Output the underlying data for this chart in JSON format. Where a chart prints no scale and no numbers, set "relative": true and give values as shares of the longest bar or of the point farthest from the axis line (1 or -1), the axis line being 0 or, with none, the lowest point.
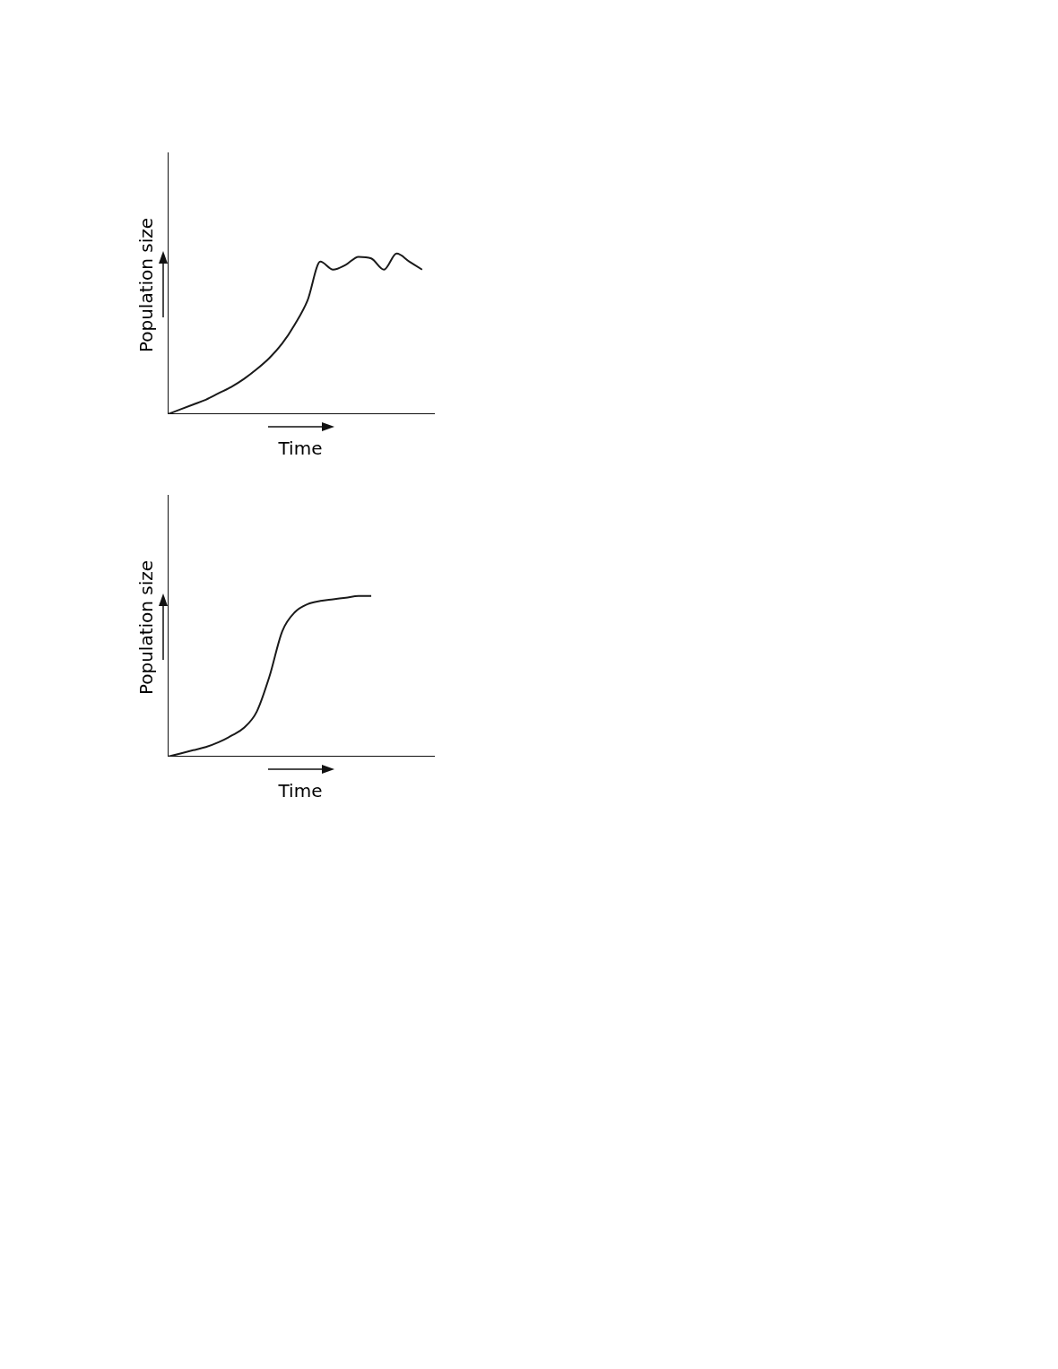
{
  "chart_data": [
    {
      "type": "line",
      "relative": true,
      "xlabel": "Time",
      "ylabel": "Population size",
      "color": "#1a1a1a",
      "marker": "none",
      "line_style": "solid",
      "categories": [
        null,
        null,
        null,
        null,
        null,
        null,
        null,
        null,
        null,
        null,
        null,
        null,
        null,
        null,
        null,
        null,
        null,
        null,
        null,
        null,
        null,
        null
      ],
      "values": [
        0,
        0.03,
        0.06,
        0.09,
        0.13,
        0.17,
        0.22,
        0.28,
        0.35,
        0.44,
        0.56,
        0.71,
        0.95,
        0.9,
        0.93,
        0.98,
        0.97,
        0.9,
        1.0,
        0.95,
        0.9,
        null
      ]
    },
    {
      "type": "line",
      "relative": true,
      "xlabel": "Time",
      "ylabel": "Population size",
      "color": "#1a1a1a",
      "marker": "none",
      "line_style": "solid",
      "categories": [
        null,
        null,
        null,
        null,
        null,
        null,
        null,
        null,
        null,
        null,
        null,
        null,
        null,
        null,
        null,
        null,
        null,
        null,
        null,
        null,
        null,
        null
      ],
      "values": [
        0,
        0.02,
        0.04,
        0.06,
        0.09,
        0.13,
        0.18,
        0.28,
        0.5,
        0.78,
        0.9,
        0.95,
        0.97,
        0.98,
        0.99,
        1.0,
        1.0,
        null,
        null,
        null,
        null,
        null
      ]
    }
  ]
}
